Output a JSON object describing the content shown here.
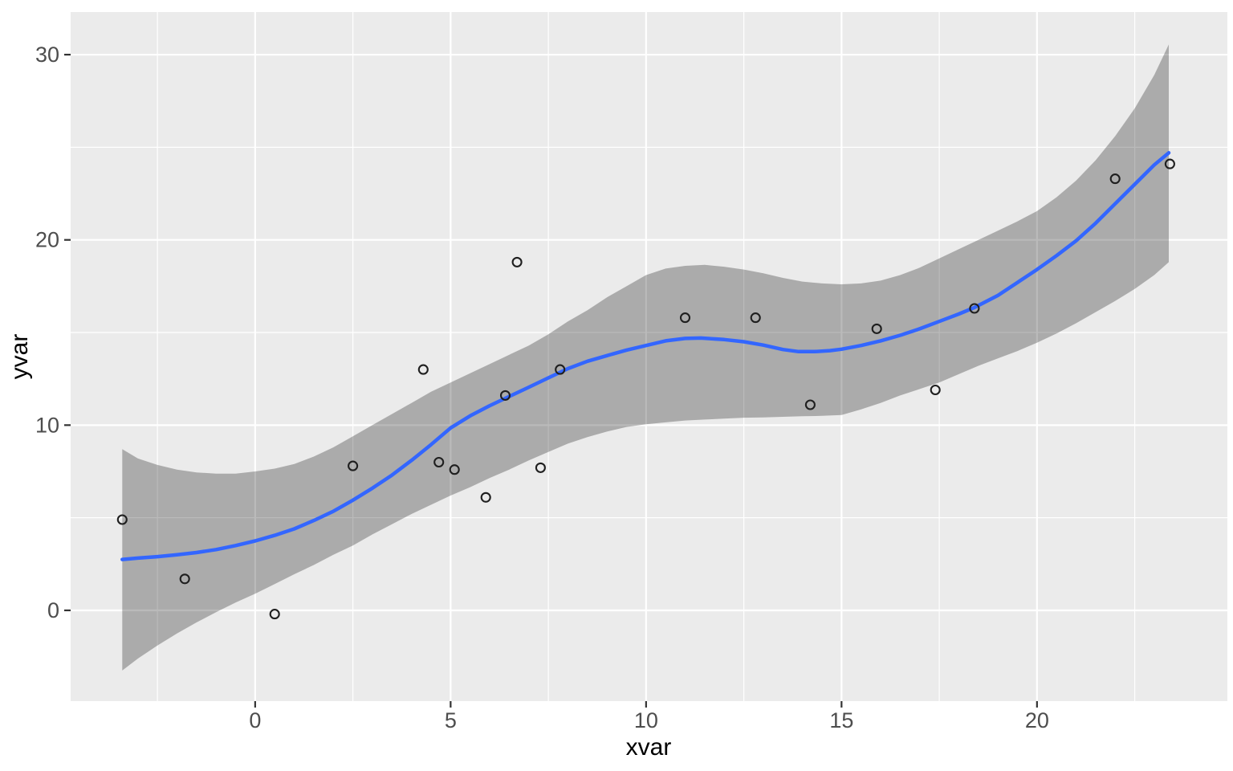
{
  "chart_data": {
    "type": "scatter",
    "title": "",
    "xlabel": "xvar",
    "ylabel": "yvar",
    "legend": "none",
    "grid": "on",
    "panel_bg": "#EBEBEB",
    "grid_color": "#FFFFFF",
    "smooth_line_color": "#3366FF",
    "ribbon_color": "rgba(0,0,0,0.27)",
    "point_stroke_color": "#1F1F1F",
    "tick_mark_color": "#333333",
    "tick_label_color": "#4D4D4D",
    "xlim": [
      -4.72,
      24.87
    ],
    "ylim": [
      -4.9,
      32.3
    ],
    "x_ticks": [
      0,
      5,
      10,
      15,
      20
    ],
    "y_ticks": [
      0,
      10,
      20,
      30
    ],
    "x_minor": [
      -2.5,
      2.5,
      7.5,
      12.5,
      17.5,
      22.5
    ],
    "y_minor": [
      5,
      15,
      25
    ],
    "points": [
      [
        -3.4,
        4.9
      ],
      [
        -1.8,
        1.7
      ],
      [
        0.5,
        -0.2
      ],
      [
        2.5,
        7.8
      ],
      [
        4.3,
        13.0
      ],
      [
        4.7,
        8.0
      ],
      [
        5.1,
        7.6
      ],
      [
        5.9,
        6.1
      ],
      [
        6.4,
        11.6
      ],
      [
        6.7,
        18.8
      ],
      [
        7.3,
        7.7
      ],
      [
        7.8,
        13.0
      ],
      [
        11.0,
        15.8
      ],
      [
        12.8,
        15.8
      ],
      [
        14.2,
        11.1
      ],
      [
        15.9,
        15.2
      ],
      [
        17.4,
        11.9
      ],
      [
        18.4,
        16.3
      ],
      [
        22.0,
        23.3
      ],
      [
        23.4,
        24.1
      ]
    ],
    "smooth_line": [
      [
        -3.4,
        2.75
      ],
      [
        -3,
        2.82
      ],
      [
        -2.5,
        2.9
      ],
      [
        -2,
        3.0
      ],
      [
        -1.5,
        3.12
      ],
      [
        -1,
        3.28
      ],
      [
        -0.5,
        3.5
      ],
      [
        0,
        3.75
      ],
      [
        0.5,
        4.05
      ],
      [
        1,
        4.4
      ],
      [
        1.5,
        4.85
      ],
      [
        2,
        5.35
      ],
      [
        2.5,
        5.95
      ],
      [
        3,
        6.6
      ],
      [
        3.5,
        7.3
      ],
      [
        4,
        8.1
      ],
      [
        4.5,
        8.95
      ],
      [
        5,
        9.85
      ],
      [
        5.5,
        10.5
      ],
      [
        6,
        11.05
      ],
      [
        6.5,
        11.55
      ],
      [
        7,
        12.05
      ],
      [
        7.5,
        12.55
      ],
      [
        8,
        13.05
      ],
      [
        8.5,
        13.45
      ],
      [
        9,
        13.75
      ],
      [
        9.5,
        14.05
      ],
      [
        10,
        14.3
      ],
      [
        10.5,
        14.55
      ],
      [
        11,
        14.68
      ],
      [
        11.4,
        14.7
      ],
      [
        12,
        14.62
      ],
      [
        12.5,
        14.5
      ],
      [
        13,
        14.32
      ],
      [
        13.5,
        14.08
      ],
      [
        13.9,
        13.97
      ],
      [
        14.3,
        13.97
      ],
      [
        14.7,
        14.02
      ],
      [
        15,
        14.1
      ],
      [
        15.5,
        14.3
      ],
      [
        16,
        14.55
      ],
      [
        16.5,
        14.85
      ],
      [
        17,
        15.2
      ],
      [
        17.5,
        15.6
      ],
      [
        18,
        16.0
      ],
      [
        18.4,
        16.35
      ],
      [
        19,
        17.0
      ],
      [
        19.5,
        17.7
      ],
      [
        20,
        18.4
      ],
      [
        20.5,
        19.15
      ],
      [
        21,
        19.95
      ],
      [
        21.5,
        20.9
      ],
      [
        22,
        21.95
      ],
      [
        22.5,
        23.0
      ],
      [
        23,
        24.05
      ],
      [
        23.37,
        24.7
      ]
    ],
    "ribbon_upper": [
      [
        -3.4,
        8.7
      ],
      [
        -3,
        8.2
      ],
      [
        -2.5,
        7.85
      ],
      [
        -2,
        7.6
      ],
      [
        -1.5,
        7.45
      ],
      [
        -1,
        7.38
      ],
      [
        -0.5,
        7.38
      ],
      [
        0,
        7.5
      ],
      [
        0.5,
        7.65
      ],
      [
        1,
        7.9
      ],
      [
        1.5,
        8.3
      ],
      [
        2,
        8.8
      ],
      [
        2.5,
        9.4
      ],
      [
        3,
        10.0
      ],
      [
        3.5,
        10.6
      ],
      [
        4,
        11.2
      ],
      [
        4.5,
        11.8
      ],
      [
        5,
        12.3
      ],
      [
        5.5,
        12.8
      ],
      [
        6,
        13.3
      ],
      [
        6.5,
        13.8
      ],
      [
        7,
        14.3
      ],
      [
        7.5,
        14.9
      ],
      [
        8,
        15.6
      ],
      [
        8.5,
        16.2
      ],
      [
        9,
        16.9
      ],
      [
        9.5,
        17.5
      ],
      [
        10,
        18.1
      ],
      [
        10.5,
        18.45
      ],
      [
        11,
        18.6
      ],
      [
        11.5,
        18.65
      ],
      [
        12,
        18.55
      ],
      [
        12.5,
        18.4
      ],
      [
        13,
        18.2
      ],
      [
        13.5,
        17.95
      ],
      [
        14,
        17.75
      ],
      [
        14.5,
        17.65
      ],
      [
        15,
        17.6
      ],
      [
        15.5,
        17.65
      ],
      [
        16,
        17.8
      ],
      [
        16.5,
        18.1
      ],
      [
        17,
        18.5
      ],
      [
        17.5,
        19.0
      ],
      [
        18,
        19.5
      ],
      [
        18.5,
        20.0
      ],
      [
        19,
        20.5
      ],
      [
        19.5,
        21.0
      ],
      [
        20,
        21.55
      ],
      [
        20.5,
        22.3
      ],
      [
        21,
        23.2
      ],
      [
        21.5,
        24.3
      ],
      [
        22,
        25.6
      ],
      [
        22.5,
        27.1
      ],
      [
        23,
        28.9
      ],
      [
        23.37,
        30.55
      ]
    ],
    "ribbon_lower": [
      [
        -3.4,
        -3.25
      ],
      [
        -3,
        -2.6
      ],
      [
        -2.5,
        -1.9
      ],
      [
        -2,
        -1.25
      ],
      [
        -1.5,
        -0.65
      ],
      [
        -1,
        -0.1
      ],
      [
        -0.5,
        0.42
      ],
      [
        0,
        0.9
      ],
      [
        0.5,
        1.42
      ],
      [
        1,
        1.95
      ],
      [
        1.5,
        2.45
      ],
      [
        2,
        3.0
      ],
      [
        2.5,
        3.5
      ],
      [
        3,
        4.1
      ],
      [
        3.5,
        4.65
      ],
      [
        4,
        5.2
      ],
      [
        4.5,
        5.7
      ],
      [
        5,
        6.2
      ],
      [
        5.5,
        6.65
      ],
      [
        6,
        7.15
      ],
      [
        6.5,
        7.6
      ],
      [
        7,
        8.1
      ],
      [
        7.5,
        8.55
      ],
      [
        8,
        9.0
      ],
      [
        8.5,
        9.35
      ],
      [
        9,
        9.65
      ],
      [
        9.5,
        9.9
      ],
      [
        10,
        10.05
      ],
      [
        10.5,
        10.15
      ],
      [
        11,
        10.25
      ],
      [
        11.5,
        10.3
      ],
      [
        12,
        10.35
      ],
      [
        12.5,
        10.4
      ],
      [
        13,
        10.42
      ],
      [
        13.5,
        10.45
      ],
      [
        14,
        10.48
      ],
      [
        14.5,
        10.5
      ],
      [
        15,
        10.55
      ],
      [
        15.5,
        10.85
      ],
      [
        16,
        11.2
      ],
      [
        16.5,
        11.6
      ],
      [
        17,
        11.95
      ],
      [
        17.5,
        12.3
      ],
      [
        18,
        12.75
      ],
      [
        18.5,
        13.2
      ],
      [
        19,
        13.6
      ],
      [
        19.5,
        14.0
      ],
      [
        20,
        14.45
      ],
      [
        20.5,
        14.95
      ],
      [
        21,
        15.5
      ],
      [
        21.5,
        16.1
      ],
      [
        22,
        16.7
      ],
      [
        22.5,
        17.35
      ],
      [
        23,
        18.1
      ],
      [
        23.37,
        18.8
      ]
    ]
  }
}
